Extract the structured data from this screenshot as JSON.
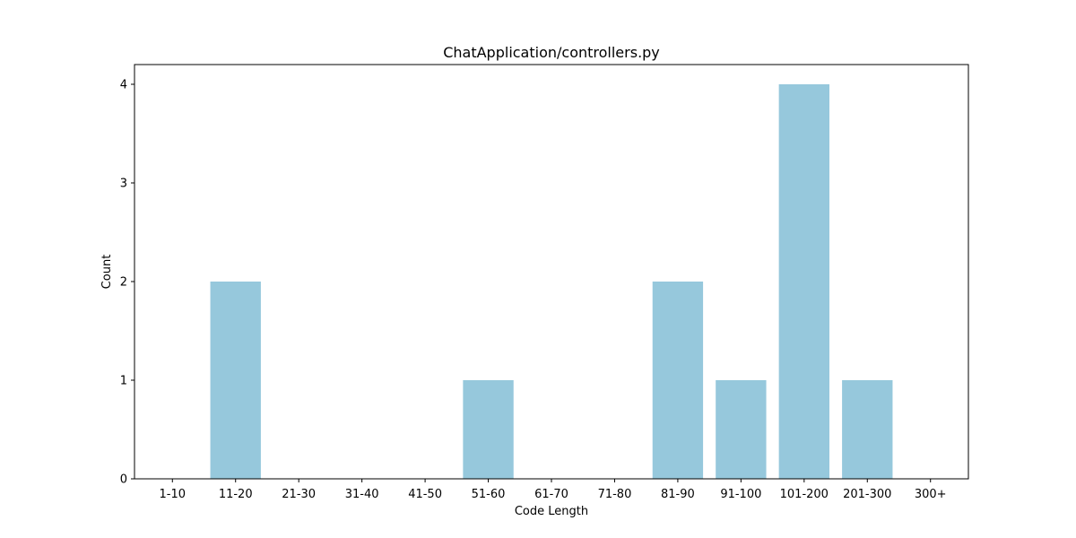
{
  "chart_data": {
    "type": "bar",
    "title": "ChatApplication/controllers.py",
    "xlabel": "Code Length",
    "ylabel": "Count",
    "categories": [
      "1-10",
      "11-20",
      "21-30",
      "31-40",
      "41-50",
      "51-60",
      "61-70",
      "71-80",
      "81-90",
      "91-100",
      "101-200",
      "201-300",
      "300+"
    ],
    "values": [
      0,
      2,
      0,
      0,
      0,
      1,
      0,
      0,
      2,
      1,
      4,
      1,
      0
    ],
    "ylim": [
      0,
      4.2
    ],
    "yticks": [
      0,
      1,
      2,
      3,
      4
    ],
    "bar_color": "#96c8dc",
    "grid": false,
    "legend": "none"
  }
}
